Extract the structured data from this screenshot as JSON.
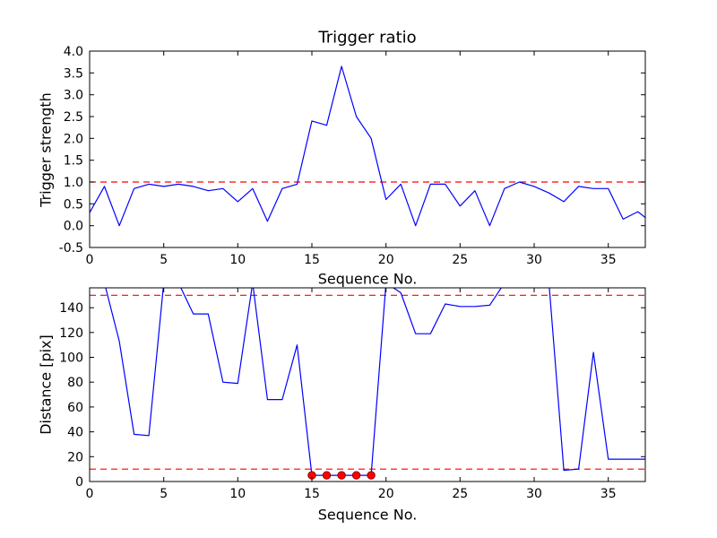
{
  "figure": {
    "background_color": "#ffffff"
  },
  "chart_data": [
    {
      "type": "line",
      "title": "Trigger ratio",
      "xlabel": "Sequence No.",
      "ylabel": "Trigger strength",
      "xlim": [
        0,
        37.5
      ],
      "ylim": [
        -0.5,
        4.0
      ],
      "grid": false,
      "legend": "none",
      "xticks": [
        0,
        5,
        10,
        15,
        20,
        25,
        30,
        35
      ],
      "xtick_labels": [
        "0",
        "5",
        "10",
        "15",
        "20",
        "25",
        "30",
        "35"
      ],
      "yticks": [
        -0.5,
        0.0,
        0.5,
        1.0,
        1.5,
        2.0,
        2.5,
        3.0,
        3.5,
        4.0
      ],
      "ytick_labels": [
        "-0.5",
        "0.0",
        "0.5",
        "1.0",
        "1.5",
        "2.0",
        "2.5",
        "3.0",
        "3.5",
        "4.0"
      ],
      "series": [
        {
          "name": "trigger-strength-line",
          "color": "#0000ff",
          "style": "solid",
          "x": [
            0,
            1,
            2,
            3,
            4,
            5,
            6,
            7,
            8,
            9,
            10,
            11,
            12,
            13,
            14,
            15,
            16,
            17,
            18,
            19,
            20,
            21,
            22,
            23,
            24,
            25,
            26,
            27,
            28,
            29,
            30,
            31,
            32,
            33,
            34,
            35,
            36,
            37,
            38
          ],
          "y": [
            0.3,
            0.9,
            0.0,
            0.85,
            0.95,
            0.9,
            0.95,
            0.9,
            0.8,
            0.85,
            0.55,
            0.85,
            0.1,
            0.85,
            0.95,
            2.4,
            2.3,
            3.65,
            2.5,
            2.0,
            0.6,
            0.95,
            0.0,
            0.95,
            0.95,
            0.45,
            0.8,
            0.0,
            0.85,
            1.0,
            0.9,
            0.75,
            0.55,
            0.9,
            0.85,
            0.85,
            0.15,
            0.32,
            0.05
          ]
        }
      ],
      "hlines": [
        {
          "name": "trigger-threshold-line",
          "y": 1.0,
          "color": "#ff0000",
          "style": "dashed"
        }
      ]
    },
    {
      "type": "line",
      "title": "",
      "xlabel": "Sequence No.",
      "ylabel": "Distance [pix]",
      "xlim": [
        0,
        37.5
      ],
      "ylim": [
        0,
        156
      ],
      "grid": false,
      "legend": "none",
      "xticks": [
        0,
        5,
        10,
        15,
        20,
        25,
        30,
        35
      ],
      "xtick_labels": [
        "0",
        "5",
        "10",
        "15",
        "20",
        "25",
        "30",
        "35"
      ],
      "yticks": [
        0,
        20,
        40,
        60,
        80,
        100,
        120,
        140
      ],
      "ytick_labels": [
        "0",
        "20",
        "40",
        "60",
        "80",
        "100",
        "120",
        "140"
      ],
      "series": [
        {
          "name": "distance-line",
          "color": "#0000ff",
          "style": "solid",
          "x": [
            0,
            1,
            2,
            3,
            4,
            5,
            6,
            7,
            8,
            9,
            10,
            11,
            12,
            13,
            14,
            15,
            16,
            17,
            18,
            19,
            20,
            21,
            22,
            23,
            24,
            25,
            26,
            27,
            28,
            29,
            30,
            31,
            32,
            33,
            34,
            35,
            36,
            37,
            38
          ],
          "y": [
            160,
            160,
            113,
            38,
            37,
            160,
            160,
            135,
            135,
            80,
            79,
            160,
            66,
            66,
            110,
            5,
            5,
            5,
            5,
            5,
            160,
            152,
            119,
            119,
            143,
            141,
            141,
            142,
            160,
            160,
            160,
            160,
            9,
            10,
            104,
            18,
            18,
            18,
            18
          ]
        }
      ],
      "hlines": [
        {
          "name": "upper-distance-threshold-line",
          "y": 150,
          "color": "#ff0000",
          "style": "dashed"
        },
        {
          "name": "lower-distance-threshold-line",
          "y": 10,
          "color": "#ff0000",
          "style": "dashed"
        }
      ],
      "scatter": [
        {
          "name": "triggered-point-marker",
          "color": "#ff0000",
          "edge_color": "#990000",
          "marker": "circle",
          "x": [
            15,
            16,
            17,
            18,
            19
          ],
          "y": [
            5,
            5,
            5,
            5,
            5
          ]
        }
      ]
    }
  ]
}
